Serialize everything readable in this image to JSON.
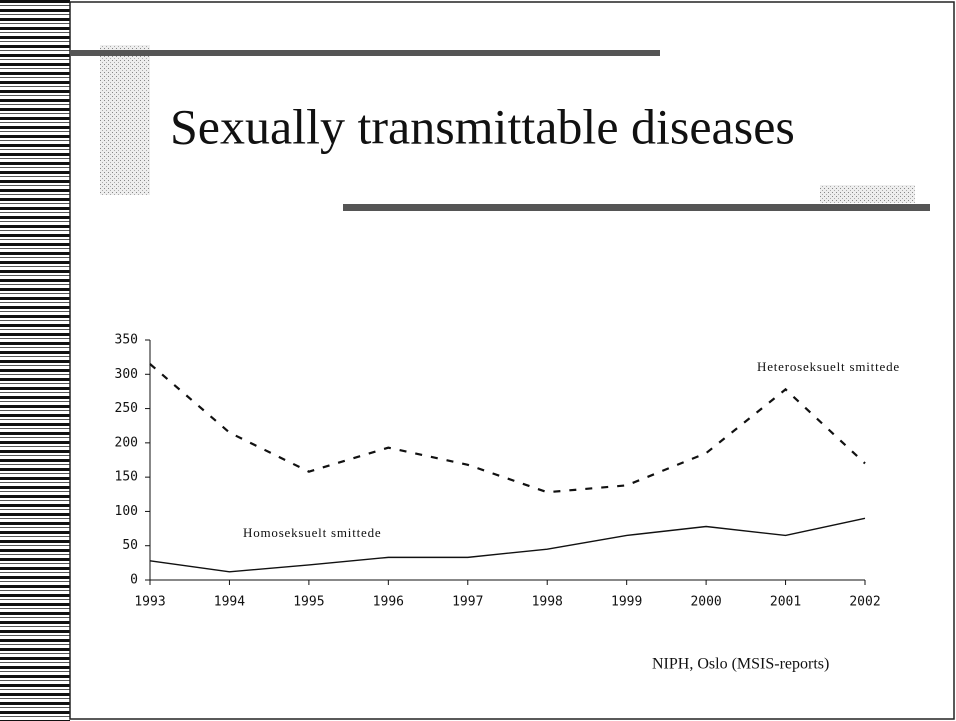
{
  "chart_data": {
    "type": "line",
    "title": "Sexually transmittable diseases",
    "source": "NIPH, Oslo (MSIS-reports)",
    "categories": [
      "1993",
      "1994",
      "1995",
      "1996",
      "1997",
      "1998",
      "1999",
      "2000",
      "2001",
      "2002"
    ],
    "series": [
      {
        "name": "Heteroseksuelt smittede",
        "color": "#111111",
        "style": "dashed",
        "values": [
          315,
          215,
          158,
          193,
          168,
          128,
          138,
          185,
          278,
          170
        ]
      },
      {
        "name": "Homoseksuelt smittede",
        "color": "#111111",
        "style": "solid",
        "values": [
          28,
          12,
          22,
          33,
          33,
          45,
          65,
          78,
          65,
          90
        ]
      }
    ],
    "ylim": [
      0,
      350
    ],
    "yticks": [
      0,
      50,
      100,
      150,
      200,
      250,
      300,
      350
    ],
    "grid": false
  }
}
